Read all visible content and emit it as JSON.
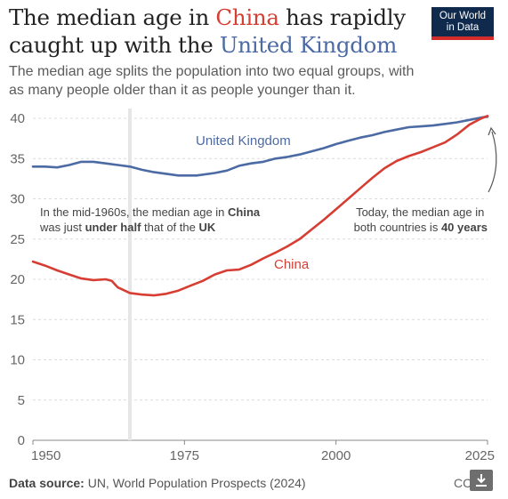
{
  "title": {
    "part1": "The median age in ",
    "china": "China",
    "part2": " has rapidly caught up with the ",
    "uk": "United Kingdom"
  },
  "subtitle": "The median age splits the population into two equal groups, with as many people older than it as people younger than it.",
  "logo": {
    "line1": "Our World",
    "line2": "in Data"
  },
  "source": {
    "label": "Data source:",
    "text": " UN, World Population Prospects (2024)"
  },
  "license": "CC",
  "colors": {
    "china": "#d73e33",
    "uk": "#4c6aa3",
    "grid": "#dcdcdc",
    "highlight": "#e6e6e6"
  },
  "annotations": {
    "left_line1_a": "In the mid-1960s, the median age in ",
    "left_line1_b": "China",
    "left_line2_a": "was just ",
    "left_line2_b": "under half",
    "left_line2_c": " that of the ",
    "left_line2_d": "UK",
    "right_line1": "Today, the median age in",
    "right_line2_a": "both countries is ",
    "right_line2_b": "40 years"
  },
  "chart_data": {
    "type": "line",
    "xlim": [
      1950,
      2025
    ],
    "ylim": [
      0,
      40
    ],
    "x_ticks": [
      1950,
      1975,
      2000,
      2025
    ],
    "y_ticks": [
      0,
      5,
      10,
      15,
      20,
      25,
      30,
      35,
      40
    ],
    "highlight_year": 1966,
    "series": [
      {
        "name": "United Kingdom",
        "points": [
          [
            1950,
            34
          ],
          [
            1952,
            34
          ],
          [
            1954,
            33.9
          ],
          [
            1956,
            34.2
          ],
          [
            1958,
            34.6
          ],
          [
            1960,
            34.6
          ],
          [
            1962,
            34.4
          ],
          [
            1964,
            34.2
          ],
          [
            1966,
            34
          ],
          [
            1968,
            33.6
          ],
          [
            1970,
            33.3
          ],
          [
            1972,
            33.1
          ],
          [
            1974,
            32.9
          ],
          [
            1977,
            32.9
          ],
          [
            1980,
            33.2
          ],
          [
            1982,
            33.5
          ],
          [
            1984,
            34.1
          ],
          [
            1986,
            34.4
          ],
          [
            1988,
            34.6
          ],
          [
            1990,
            35
          ],
          [
            1992,
            35.2
          ],
          [
            1994,
            35.5
          ],
          [
            1996,
            35.9
          ],
          [
            1998,
            36.3
          ],
          [
            2000,
            36.8
          ],
          [
            2002,
            37.2
          ],
          [
            2004,
            37.6
          ],
          [
            2006,
            37.9
          ],
          [
            2008,
            38.3
          ],
          [
            2010,
            38.6
          ],
          [
            2012,
            38.9
          ],
          [
            2014,
            39
          ],
          [
            2016,
            39.1
          ],
          [
            2018,
            39.3
          ],
          [
            2020,
            39.5
          ],
          [
            2022,
            39.8
          ],
          [
            2024,
            40.1
          ],
          [
            2025,
            40.2
          ]
        ]
      },
      {
        "name": "China",
        "points": [
          [
            1950,
            22.2
          ],
          [
            1952,
            21.7
          ],
          [
            1954,
            21.1
          ],
          [
            1956,
            20.6
          ],
          [
            1958,
            20.1
          ],
          [
            1960,
            19.9
          ],
          [
            1962,
            20
          ],
          [
            1963,
            19.8
          ],
          [
            1964,
            19
          ],
          [
            1966,
            18.3
          ],
          [
            1968,
            18.1
          ],
          [
            1970,
            18
          ],
          [
            1972,
            18.2
          ],
          [
            1974,
            18.6
          ],
          [
            1976,
            19.2
          ],
          [
            1978,
            19.8
          ],
          [
            1980,
            20.6
          ],
          [
            1982,
            21.1
          ],
          [
            1984,
            21.2
          ],
          [
            1986,
            21.8
          ],
          [
            1988,
            22.6
          ],
          [
            1990,
            23.3
          ],
          [
            1992,
            24.1
          ],
          [
            1994,
            25
          ],
          [
            1996,
            26.2
          ],
          [
            1998,
            27.4
          ],
          [
            2000,
            28.7
          ],
          [
            2002,
            30
          ],
          [
            2004,
            31.3
          ],
          [
            2006,
            32.6
          ],
          [
            2008,
            33.8
          ],
          [
            2010,
            34.7
          ],
          [
            2012,
            35.3
          ],
          [
            2014,
            35.8
          ],
          [
            2016,
            36.4
          ],
          [
            2018,
            37
          ],
          [
            2020,
            38
          ],
          [
            2022,
            39.2
          ],
          [
            2024,
            40
          ],
          [
            2025,
            40.3
          ]
        ]
      }
    ]
  }
}
